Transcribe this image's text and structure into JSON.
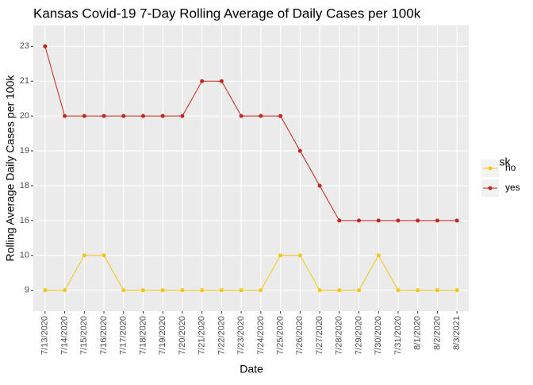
{
  "chart_data": {
    "type": "line",
    "title": "Kansas Covid-19 7-Day Rolling Average of Daily Cases per 100k",
    "x_label": "Date",
    "y_label": "Rolling Average Daily Cases per 100k",
    "y_scale": "discrete",
    "categories": [
      "7/13/2020",
      "7/14/2020",
      "7/15/2020",
      "7/16/2020",
      "7/17/2020",
      "7/18/2020",
      "7/19/2020",
      "7/20/2020",
      "7/21/2020",
      "7/22/2020",
      "7/23/2020",
      "7/24/2020",
      "7/25/2020",
      "7/26/2020",
      "7/27/2020",
      "7/28/2020",
      "7/29/2020",
      "7/30/2020",
      "7/31/2020",
      "8/1/2020",
      "8/2/2020",
      "8/3/2021"
    ],
    "yticks": [
      9,
      10,
      16,
      18,
      19,
      20,
      21,
      23
    ],
    "legend_title": "mask",
    "legend_position": "right",
    "grid": true,
    "series": [
      {
        "name": "no",
        "color": "#F5C710",
        "values": [
          9,
          9,
          10,
          10,
          9,
          9,
          9,
          9,
          9,
          9,
          9,
          9,
          10,
          10,
          9,
          9,
          9,
          10,
          9,
          9,
          9,
          9
        ]
      },
      {
        "name": "yes",
        "color": "#C4261B",
        "values": [
          23,
          20,
          20,
          20,
          20,
          20,
          20,
          20,
          21,
          21,
          20,
          20,
          20,
          19,
          18,
          16,
          16,
          16,
          16,
          16,
          16,
          16
        ]
      }
    ]
  }
}
